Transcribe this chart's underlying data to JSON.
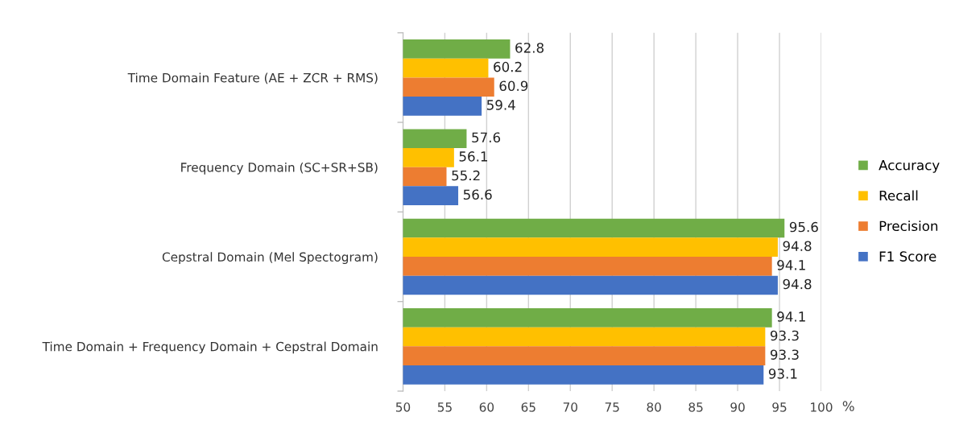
{
  "chart_data": {
    "type": "bar",
    "orientation": "horizontal",
    "xlabel": "%",
    "categories": [
      "Time Domain Feature (AE + ZCR + RMS)",
      "Frequency Domain (SC+SR+SB)",
      "Cepstral Domain (Mel Spectogram)",
      "Time Domain + Frequency Domain + Cepstral Domain"
    ],
    "series": [
      {
        "name": "Accuracy",
        "color": "#70ad47",
        "values": [
          62.8,
          57.6,
          95.6,
          94.1
        ]
      },
      {
        "name": "Recall",
        "color": "#ffc000",
        "values": [
          60.2,
          56.1,
          94.8,
          93.3
        ]
      },
      {
        "name": "Precision",
        "color": "#ed7d31",
        "values": [
          60.9,
          55.2,
          94.1,
          93.3
        ]
      },
      {
        "name": "F1 Score",
        "color": "#4472c4",
        "values": [
          59.4,
          56.6,
          94.8,
          93.1
        ]
      }
    ],
    "xlim": [
      50,
      100
    ],
    "xticks": [
      50,
      55,
      60,
      65,
      70,
      75,
      80,
      85,
      90,
      95,
      100
    ],
    "grid": "x",
    "legend": "right",
    "data_labels": true
  }
}
